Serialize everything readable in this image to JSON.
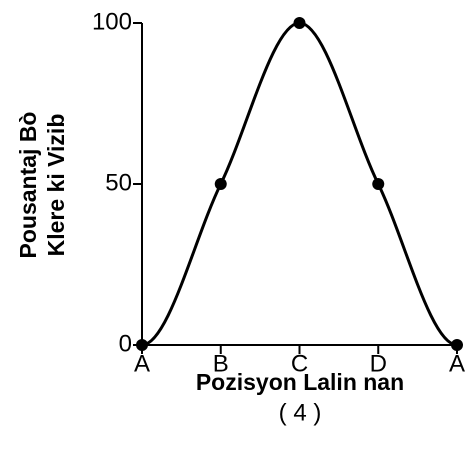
{
  "chart_data": {
    "type": "line",
    "ylabel": [
      "Pousantaj Bò",
      "Klere ki Vizib"
    ],
    "xlabel": "Pozisyon Lalin nan",
    "caption": "( 4 )",
    "categories": [
      "A",
      "B",
      "C",
      "D",
      "A"
    ],
    "series": [
      {
        "color": "#000000",
        "values": [
          0,
          50,
          100,
          50,
          0
        ]
      }
    ],
    "ylim": [
      0,
      100
    ],
    "yticks": [
      0,
      50,
      100
    ],
    "smooth": true,
    "markers": true
  }
}
